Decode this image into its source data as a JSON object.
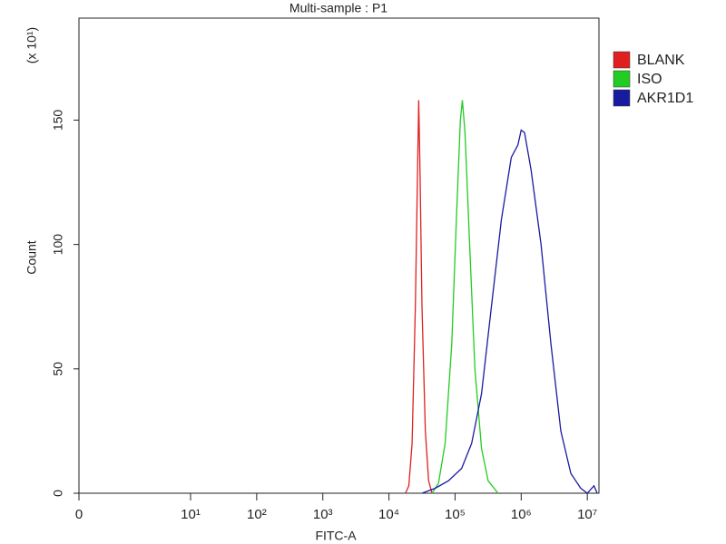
{
  "chart_data": {
    "type": "line",
    "title": "Multi-sample : P1",
    "x_label": "FITC-A",
    "y_label": "Count",
    "y_multiplier": "(x 10¹)",
    "xscale": "symlog",
    "linthresh": 10,
    "xlim": [
      0,
      15000000
    ],
    "xticks": [
      0,
      {
        "value": 10,
        "label": "10¹"
      },
      {
        "value": 100,
        "label": "10²"
      },
      {
        "value": 1000,
        "label": "10³"
      },
      {
        "value": 10000,
        "label": "10⁴"
      },
      {
        "value": 100000,
        "label": "10⁵"
      },
      {
        "value": 1000000,
        "label": "10⁶"
      },
      {
        "value": 10000000,
        "label": "10⁷"
      }
    ],
    "ylim": [
      0,
      191
    ],
    "yticks": [
      0,
      50,
      100,
      150
    ],
    "legend": "top-right",
    "series": [
      {
        "name": "BLANK",
        "color": "#e02020",
        "x": [
          17800,
          20000,
          22400,
          25100,
          26900,
          28200,
          29500,
          31600,
          35500,
          39800,
          44700
        ],
        "values": [
          0,
          3,
          20,
          75,
          125,
          158,
          130,
          75,
          25,
          5,
          0
        ]
      },
      {
        "name": "ISO",
        "color": "#22cc22",
        "x": [
          44700,
          56200,
          70800,
          89100,
          104700,
          120200,
          128800,
          141300,
          166000,
          199500,
          251200,
          316200,
          446700
        ],
        "values": [
          0,
          4,
          20,
          60,
          110,
          150,
          158,
          145,
          100,
          50,
          18,
          5,
          0
        ]
      },
      {
        "name": "AKR1D1",
        "color": "#1a1aa0",
        "x": [
          31600,
          50100,
          79400,
          125900,
          177800,
          251200,
          354800,
          501200,
          707900,
          891300,
          1000000,
          1122000,
          1413000,
          1995000,
          2818000,
          3981000,
          5623000,
          7943000,
          10000000,
          12590000,
          14130000
        ],
        "values": [
          0,
          2,
          5,
          10,
          20,
          40,
          75,
          110,
          135,
          140,
          146,
          145,
          130,
          100,
          60,
          25,
          8,
          2,
          0,
          3,
          0
        ]
      }
    ]
  }
}
